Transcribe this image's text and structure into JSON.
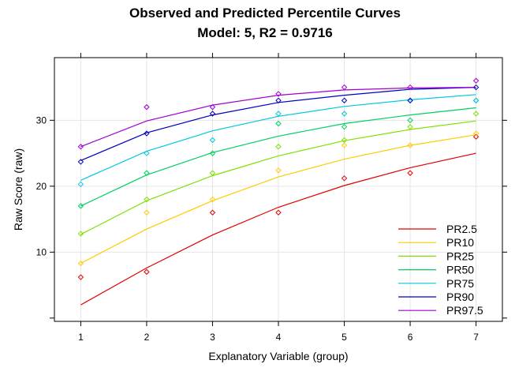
{
  "chart_data": {
    "type": "line",
    "title": "Observed and Predicted Percentile Curves",
    "subtitle": "Model: 5, R2 = 0.9716",
    "xlabel": "Explanatory Variable (group)",
    "ylabel": "Raw Score (raw)",
    "x": [
      1,
      2,
      3,
      4,
      5,
      6,
      7
    ],
    "xlim": [
      0.6,
      7.4
    ],
    "ylim": [
      -0.5,
      39.5
    ],
    "xticks": [
      1,
      2,
      3,
      4,
      5,
      6,
      7
    ],
    "yticks": [
      10,
      20,
      30
    ],
    "grid": true,
    "legend_position": "bottom-right",
    "series": [
      {
        "name": "PR2.5",
        "color": "#e00000",
        "predicted": [
          2.0,
          7.6,
          12.6,
          16.8,
          20.1,
          22.8,
          25.0
        ],
        "observed": [
          6.2,
          7.0,
          16.0,
          16.0,
          21.2,
          22.0,
          27.5
        ]
      },
      {
        "name": "PR10",
        "color": "#ffcc00",
        "predicted": [
          8.3,
          13.5,
          17.8,
          21.4,
          24.1,
          26.2,
          27.8
        ],
        "observed": [
          8.3,
          16.0,
          18.0,
          22.4,
          26.2,
          26.2,
          28.0
        ]
      },
      {
        "name": "PR25",
        "color": "#80e000",
        "predicted": [
          12.7,
          17.8,
          21.6,
          24.6,
          26.9,
          28.6,
          29.9
        ],
        "observed": [
          12.8,
          18.0,
          22.0,
          26.0,
          27.0,
          29.0,
          31.0
        ]
      },
      {
        "name": "PR50",
        "color": "#00d060",
        "predicted": [
          17.0,
          21.7,
          25.1,
          27.6,
          29.5,
          30.8,
          31.9
        ],
        "observed": [
          17.0,
          22.0,
          25.0,
          29.5,
          29.0,
          30.0,
          33.0
        ]
      },
      {
        "name": "PR75",
        "color": "#00c8e0",
        "predicted": [
          20.9,
          25.3,
          28.4,
          30.6,
          32.1,
          33.1,
          33.9
        ],
        "observed": [
          20.3,
          25.0,
          27.0,
          31.0,
          31.0,
          33.0,
          33.0
        ]
      },
      {
        "name": "PR90",
        "color": "#0000c0",
        "predicted": [
          23.9,
          28.1,
          30.8,
          32.7,
          33.8,
          34.7,
          35.0
        ],
        "observed": [
          23.7,
          28.0,
          31.0,
          33.0,
          33.0,
          33.0,
          35.0
        ]
      },
      {
        "name": "PR97.5",
        "color": "#a000d0",
        "predicted": [
          26.0,
          29.9,
          32.3,
          33.8,
          34.6,
          34.9,
          35.0
        ],
        "observed": [
          26.0,
          32.0,
          32.0,
          34.0,
          35.0,
          35.0,
          36.0
        ]
      }
    ]
  }
}
